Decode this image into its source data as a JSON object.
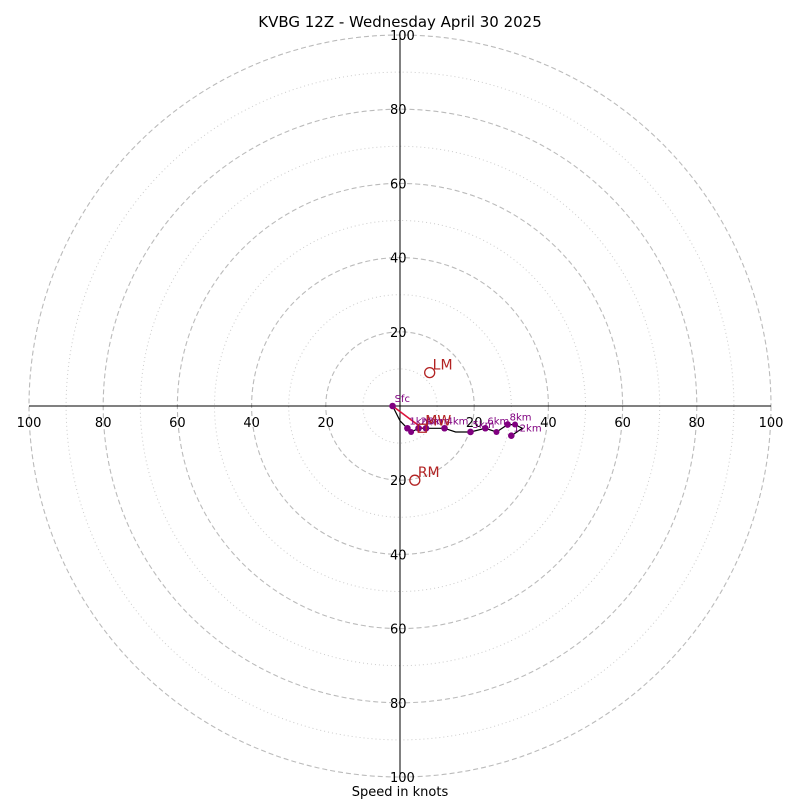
{
  "chart_data": {
    "type": "scatter",
    "subtype": "hodograph",
    "title": "KVBG 12Z - Wednesday April 30 2025",
    "xlabel": "Speed in knots",
    "units": "knots",
    "range": [
      -100,
      100
    ],
    "rings_major": [
      20,
      40,
      60,
      80,
      100
    ],
    "rings_minor": [
      10,
      30,
      50,
      70,
      90
    ],
    "ticks": {
      "left": [
        "100",
        "80",
        "60",
        "40",
        "20"
      ],
      "right": [
        "20",
        "40",
        "60",
        "80",
        "100"
      ],
      "top": [
        "20",
        "40",
        "60",
        "80",
        "100"
      ],
      "bottom": [
        "20",
        "40",
        "60",
        "80",
        "100"
      ]
    },
    "grid": true,
    "colors": {
      "trace": "#000000",
      "points": "#800080",
      "shear_vector": "#dc143c",
      "motion": "#b22222",
      "grid": "#bbbbbb"
    },
    "hodograph": [
      {
        "u": -2,
        "v": 0
      },
      {
        "u": 0,
        "v": -4
      },
      {
        "u": 1,
        "v": -5
      },
      {
        "u": 2,
        "v": -6
      },
      {
        "u": 3,
        "v": -7
      },
      {
        "u": 5,
        "v": -6
      },
      {
        "u": 7,
        "v": -6
      },
      {
        "u": 9,
        "v": -6
      },
      {
        "u": 12,
        "v": -6
      },
      {
        "u": 15,
        "v": -7
      },
      {
        "u": 19,
        "v": -7
      },
      {
        "u": 23,
        "v": -6
      },
      {
        "u": 26,
        "v": -7
      },
      {
        "u": 29,
        "v": -5
      },
      {
        "u": 31,
        "v": -5
      },
      {
        "u": 33,
        "v": -6
      },
      {
        "u": 30,
        "v": -8
      }
    ],
    "height_markers": [
      {
        "label": "Sfc",
        "u": -2,
        "v": 0
      },
      {
        "label": "1km",
        "u": 2,
        "v": -6
      },
      {
        "label": "2km",
        "u": 5,
        "v": -6
      },
      {
        "label": "3km",
        "u": 7,
        "v": -6
      },
      {
        "label": "4km",
        "u": 12,
        "v": -6
      },
      {
        "label": "5km",
        "u": 19,
        "v": -7
      },
      {
        "label": "6km",
        "u": 23,
        "v": -6
      },
      {
        "label": "8km",
        "u": 29,
        "v": -5
      },
      {
        "label": "12km",
        "u": 30,
        "v": -8
      }
    ],
    "extra_points": [
      {
        "u": 3,
        "v": -7
      },
      {
        "u": 26,
        "v": -7
      },
      {
        "u": 31,
        "v": -5
      }
    ],
    "shear_vector": {
      "from": {
        "u": -2,
        "v": 0
      },
      "to": {
        "u": 6,
        "v": -6
      }
    },
    "storm_motion": [
      {
        "label": "LM",
        "u": 8,
        "v": 9
      },
      {
        "label": "RM",
        "u": 4,
        "v": -20
      },
      {
        "label": "MW",
        "u": 6,
        "v": -6
      }
    ]
  }
}
